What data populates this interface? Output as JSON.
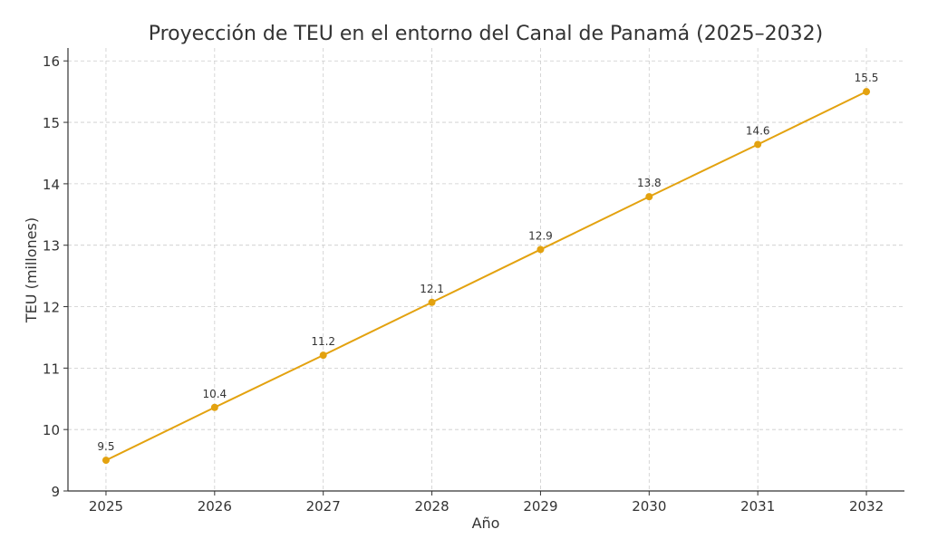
{
  "chart_data": {
    "type": "line",
    "title": "Proyección de TEU en el entorno del Canal de Panamá (2025–2032)",
    "xlabel": "Año",
    "ylabel": "TEU (millones)",
    "x": [
      2025,
      2026,
      2027,
      2028,
      2029,
      2030,
      2031,
      2032
    ],
    "values": [
      9.5,
      10.36,
      11.21,
      12.07,
      12.93,
      13.79,
      14.64,
      15.5
    ],
    "data_labels": [
      "9.5",
      "10.4",
      "11.2",
      "12.1",
      "12.9",
      "13.8",
      "14.6",
      "15.5"
    ],
    "xticks": [
      "2025",
      "2026",
      "2027",
      "2028",
      "2029",
      "2030",
      "2031",
      "2032"
    ],
    "yticks": [
      "9",
      "10",
      "11",
      "12",
      "13",
      "14",
      "15",
      "16"
    ],
    "xlim": [
      2024.65,
      2032.35
    ],
    "ylim": [
      9,
      16.21
    ],
    "grid": true,
    "line_color": "#E3A20F"
  }
}
